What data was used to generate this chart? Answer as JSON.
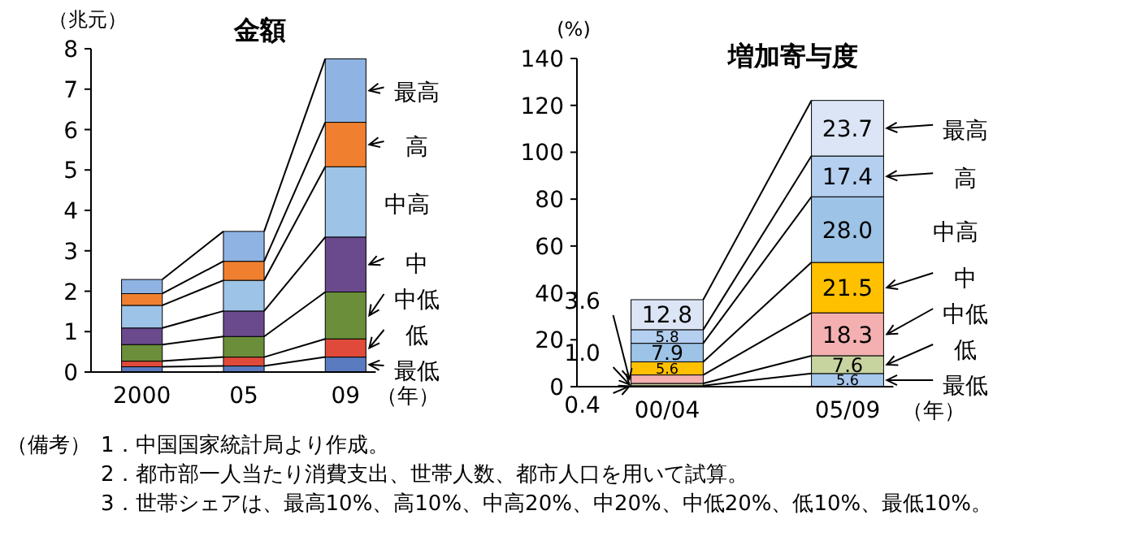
{
  "chart_data": [
    {
      "type": "bar",
      "stacked": true,
      "title": "金額",
      "ylabel": "（兆元）",
      "xlabel": "（年）",
      "categories": [
        "2000",
        "05",
        "09"
      ],
      "ylim": [
        0,
        8
      ],
      "yticks": [
        0,
        1,
        2,
        3,
        4,
        5,
        6,
        7,
        8
      ],
      "legend": "right",
      "grid": false,
      "series": [
        {
          "name": "最低",
          "color": "#5b7bc0",
          "values": [
            0.13,
            0.15,
            0.37
          ]
        },
        {
          "name": "低",
          "color": "#e04a3a",
          "values": [
            0.14,
            0.22,
            0.45
          ]
        },
        {
          "name": "中低",
          "color": "#6b8e3a",
          "values": [
            0.41,
            0.51,
            1.16
          ]
        },
        {
          "name": "中",
          "color": "#6a4a8c",
          "values": [
            0.41,
            0.63,
            1.36
          ]
        },
        {
          "name": "中高",
          "color": "#9dc3e6",
          "values": [
            0.56,
            0.76,
            1.74
          ]
        },
        {
          "name": "高",
          "color": "#f08030",
          "values": [
            0.29,
            0.47,
            1.1
          ]
        },
        {
          "name": "最高",
          "color": "#8fb4e3",
          "values": [
            0.35,
            0.74,
            1.57
          ]
        }
      ],
      "annotations": [
        "（備考）",
        "1．中国国家統計局より作成。",
        "2．都市部一人当たり消費支出、世帯人数、都市人口を用いて試算。",
        "3．世帯シェアは、最高10%、高10%、中高20%、中20%、中低20%、低10%、最低10%。"
      ]
    },
    {
      "type": "bar",
      "stacked": true,
      "title": "増加寄与度",
      "ylabel": "(%)",
      "xlabel": "（年）",
      "categories": [
        "00/04",
        "05/09"
      ],
      "ylim": [
        0,
        140
      ],
      "yticks": [
        0,
        20,
        40,
        60,
        80,
        100,
        120,
        140
      ],
      "legend": "right",
      "grid": false,
      "series": [
        {
          "name": "最低",
          "color": "#a8c8ec",
          "values": [
            0.4,
            5.6
          ],
          "value_labels": [
            "0.4",
            "5.6"
          ]
        },
        {
          "name": "低",
          "color": "#c8d4a0",
          "values": [
            1.0,
            7.6
          ],
          "value_labels": [
            "1.0",
            "7.6"
          ]
        },
        {
          "name": "中低",
          "color": "#f4b0b0",
          "values": [
            3.6,
            18.3
          ],
          "value_labels": [
            "3.6",
            "18.3"
          ]
        },
        {
          "name": "中",
          "color": "#ffc000",
          "values": [
            5.6,
            21.5
          ],
          "value_labels": [
            "5.6",
            "21.5"
          ]
        },
        {
          "name": "中高",
          "color": "#9dc3e6",
          "values": [
            7.9,
            28.0
          ],
          "value_labels": [
            "7.9",
            "28.0"
          ]
        },
        {
          "name": "高",
          "color": "#b4cff0",
          "values": [
            5.8,
            17.4
          ],
          "value_labels": [
            "5.8",
            "17.4"
          ]
        },
        {
          "name": "最高",
          "color": "#dbe5f5",
          "values": [
            12.8,
            23.7
          ],
          "value_labels": [
            "12.8",
            "23.7"
          ]
        }
      ]
    }
  ]
}
